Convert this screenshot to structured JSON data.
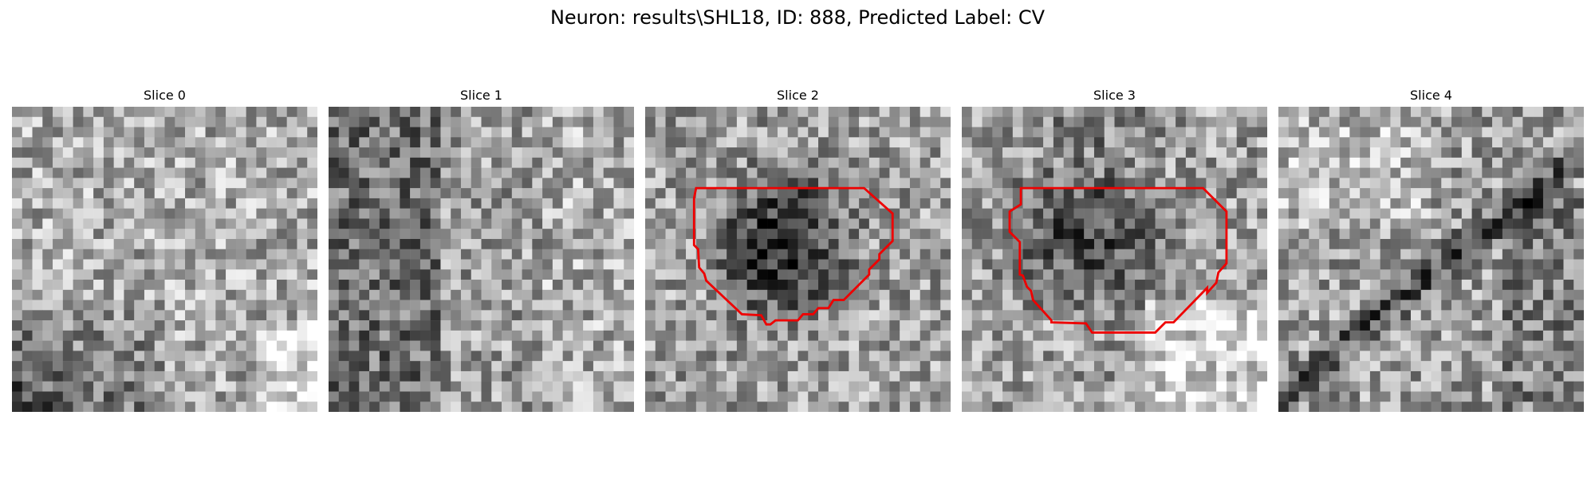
{
  "figure": {
    "title": "Neuron: results\\SHL18, ID: 888, Predicted Label: CV"
  },
  "panels": [
    {
      "title": "Slice 0",
      "image": {
        "description_icon": "grayscale-noise-icon",
        "seed": 11,
        "dark_bottom_left": true,
        "bright_bottom_right": true
      },
      "contour": null
    },
    {
      "title": "Slice 1",
      "image": {
        "description_icon": "grayscale-noise-icon",
        "seed": 23,
        "dark_left": true
      },
      "contour": null
    },
    {
      "title": "Slice 2",
      "image": {
        "description_icon": "grayscale-noise-icon",
        "seed": 37,
        "dark_blob_center": true
      },
      "contour": {
        "color": "#ee0000"
      }
    },
    {
      "title": "Slice 3",
      "image": {
        "description_icon": "grayscale-noise-icon",
        "seed": 51,
        "dark_blob_center": true,
        "bright_bottom_right": true
      },
      "contour": {
        "color": "#ee0000"
      }
    },
    {
      "title": "Slice 4",
      "image": {
        "description_icon": "grayscale-noise-icon",
        "seed": 67,
        "dark_diagonal_band": true
      },
      "contour": null
    }
  ]
}
